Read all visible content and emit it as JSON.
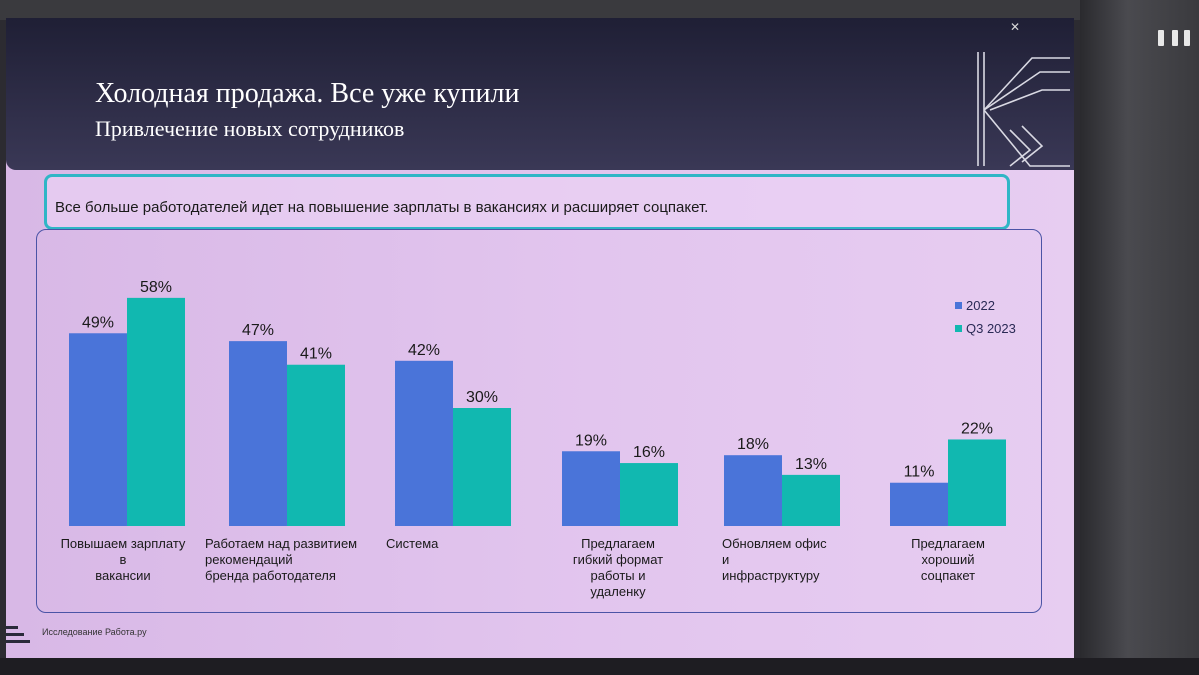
{
  "slide": {
    "title": "Холодная продажа. Все уже купили",
    "subtitle": "Привлечение новых сотрудников",
    "callout": "Все больше работодателей идет на повышение зарплаты в вакансиях и расширяет соцпакет.",
    "source": "Исследование Работа.ру"
  },
  "colors": {
    "series_2022": "#4a74d9",
    "series_q3_2023": "#11b8b0",
    "header": "#26253d",
    "accent_border": "#2fb6c6"
  },
  "chart_data": {
    "type": "bar",
    "categories": [
      "Повышаем зарплату в вакансии",
      "Работаем над развитием рекомендаций бренда работодателя",
      "Система",
      "Предлагаем гибкий формат работы и удаленку",
      "Обновляем офис и инфраструктуру",
      "Предлагаем хороший соцпакет"
    ],
    "category_label_lines": [
      [
        "Повышаем зарплату",
        "в",
        "вакансии"
      ],
      [
        "Работаем над развитием",
        "рекомендаций",
        "бренда работодателя"
      ],
      [
        "Система"
      ],
      [
        "Предлагаем",
        "гибкий формат",
        "работы и",
        "удаленку"
      ],
      [
        "Обновляем офис",
        "и",
        "инфраструктуру"
      ],
      [
        "Предлагаем",
        "хороший",
        "соцпакет"
      ]
    ],
    "series": [
      {
        "name": "2022",
        "values": [
          49,
          47,
          42,
          19,
          18,
          11
        ]
      },
      {
        "name": "Q3 2023",
        "values": [
          58,
          41,
          30,
          16,
          13,
          22
        ]
      }
    ],
    "value_suffix": "%",
    "ylim": [
      0,
      60
    ],
    "grid": false,
    "legend": "top-right"
  }
}
